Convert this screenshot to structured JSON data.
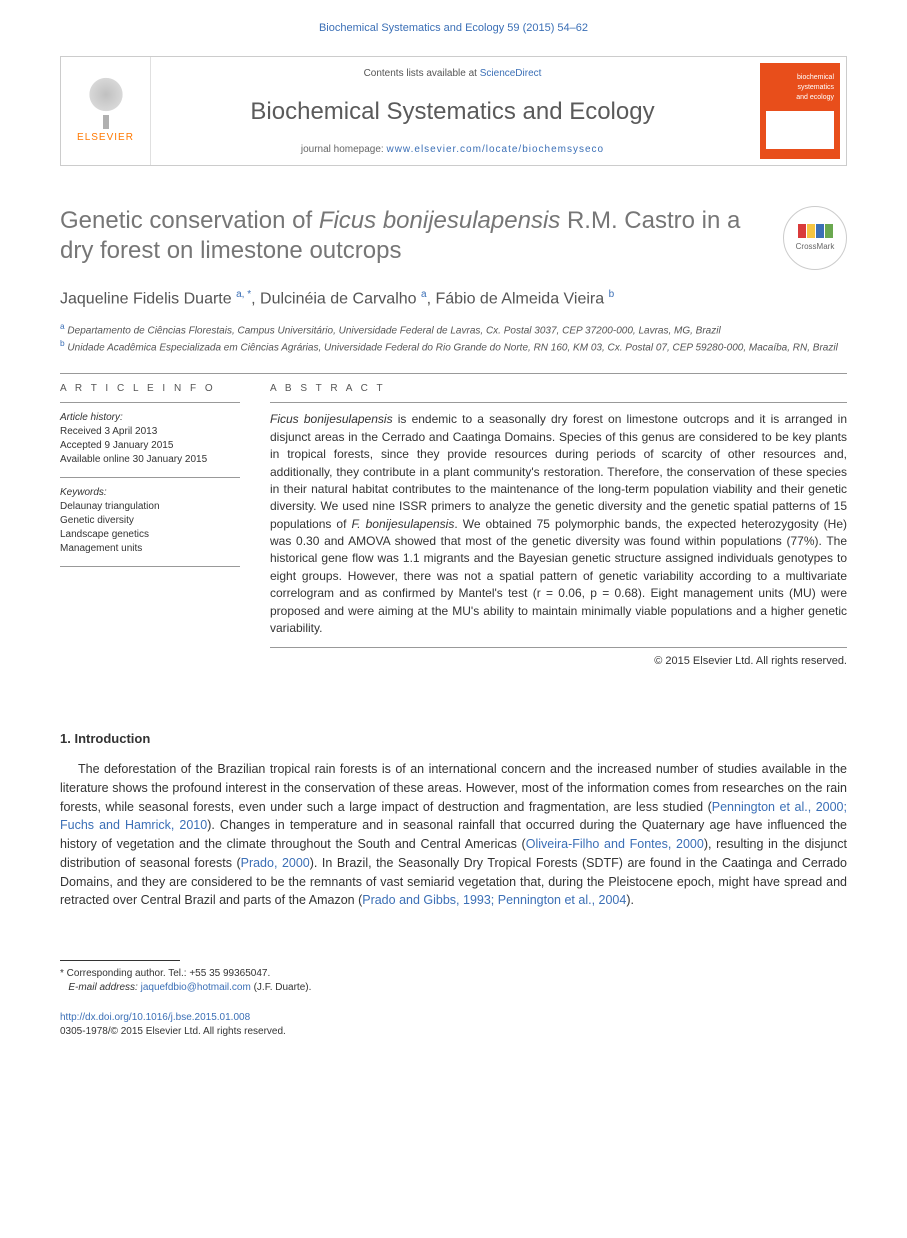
{
  "header": {
    "citation": "Biochemical Systematics and Ecology 59 (2015) 54–62",
    "contents_prefix": "Contents lists available at ",
    "contents_link": "ScienceDirect",
    "journal_name": "Biochemical Systematics and Ecology",
    "homepage_prefix": "journal homepage: ",
    "homepage_url": "www.elsevier.com/locate/biochemsyseco",
    "elsevier_label": "ELSEVIER",
    "cover_text_1": "biochemical",
    "cover_text_2": "systematics",
    "cover_text_3": "and ecology"
  },
  "crossmark": {
    "label": "CrossMark"
  },
  "title": {
    "pre": "Genetic conservation of ",
    "species": "Ficus bonijesulapensis",
    "post": " R.M. Castro in a dry forest on limestone outcrops"
  },
  "authors": {
    "a1_name": "Jaqueline Fidelis Duarte",
    "a1_aff": "a, *",
    "a2_name": "Dulcinéia de Carvalho",
    "a2_aff": "a",
    "a3_name": "Fábio de Almeida Vieira",
    "a3_aff": "b"
  },
  "affiliations": {
    "a_sup": "a",
    "a_text": " Departamento de Ciências Florestais, Campus Universitário, Universidade Federal de Lavras, Cx. Postal 3037, CEP 37200-000, Lavras, MG, Brazil",
    "b_sup": "b",
    "b_text": " Unidade Acadêmica Especializada em Ciências Agrárias, Universidade Federal do Rio Grande do Norte, RN 160, KM 03, Cx. Postal 07, CEP 59280-000, Macaíba, RN, Brazil"
  },
  "article_info": {
    "heading": "A R T I C L E   I N F O",
    "history_head": "Article history:",
    "received": "Received 3 April 2013",
    "accepted": "Accepted 9 January 2015",
    "online": "Available online 30 January 2015",
    "keywords_head": "Keywords:",
    "kw1": "Delaunay triangulation",
    "kw2": "Genetic diversity",
    "kw3": "Landscape genetics",
    "kw4": "Management units"
  },
  "abstract": {
    "heading": "A B S T R A C T",
    "species1": "Ficus bonijesulapensis",
    "t1": " is endemic to a seasonally dry forest on limestone outcrops and it is arranged in disjunct areas in the Cerrado and Caatinga Domains. Species of this genus are considered to be key plants in tropical forests, since they provide resources during periods of scarcity of other resources and, additionally, they contribute in a plant community's restoration. Therefore, the conservation of these species in their natural habitat contributes to the maintenance of the long-term population viability and their genetic diversity. We used nine ISSR primers to analyze the genetic diversity and the genetic spatial patterns of 15 populations of ",
    "species2": "F. bonijesulapensis",
    "t2": ". We obtained 75 polymorphic bands, the expected heterozygosity (He) was 0.30 and AMOVA showed that most of the genetic diversity was found within populations (77%). The historical gene flow was 1.1 migrants and the Bayesian genetic structure assigned individuals genotypes to eight groups. However, there was not a spatial pattern of genetic variability according to a multivariate correlogram and as confirmed by Mantel's test (r = 0.06, p = 0.68). Eight management units (MU) were proposed and were aiming at the MU's ability to maintain minimally viable populations and a higher genetic variability.",
    "copyright": "© 2015 Elsevier Ltd. All rights reserved."
  },
  "section1": {
    "heading": "1. Introduction",
    "p1a": "The deforestation of the Brazilian tropical rain forests is of an international concern and the increased number of studies available in the literature shows the profound interest in the conservation of these areas. However, most of the information comes from researches on the rain forests, while seasonal forests, even under such a large impact of destruction and fragmentation, are less studied (",
    "r1": "Pennington et al., 2000; Fuchs and Hamrick, 2010",
    "p1b": "). Changes in temperature and in seasonal rainfall that occurred during the Quaternary age have influenced the history of vegetation and the climate throughout the South and Central Americas (",
    "r2": "Oliveira-Filho and Fontes, 2000",
    "p1c": "), resulting in the disjunct distribution of seasonal forests (",
    "r3": "Prado, 2000",
    "p1d": "). In Brazil, the Seasonally Dry Tropical Forests (SDTF) are found in the Caatinga and Cerrado Domains, and they are considered to be the remnants of vast semiarid vegetation that, during the Pleistocene epoch, might have spread and retracted over Central Brazil and parts of the Amazon (",
    "r4": "Prado and Gibbs, 1993; Pennington et al., 2004",
    "p1e": ")."
  },
  "footer": {
    "corr_label": "* Corresponding author. Tel.: +55 35 99365047.",
    "email_label": "E-mail address:",
    "email": "jaquefdbio@hotmail.com",
    "email_suffix": " (J.F. Duarte).",
    "doi": "http://dx.doi.org/10.1016/j.bse.2015.01.008",
    "issn": "0305-1978/© 2015 Elsevier Ltd. All rights reserved."
  },
  "colors": {
    "link": "#3b6fb6",
    "orange": "#e84e1b",
    "heading_gray": "#767676",
    "text": "#333333",
    "rule": "#999999"
  }
}
